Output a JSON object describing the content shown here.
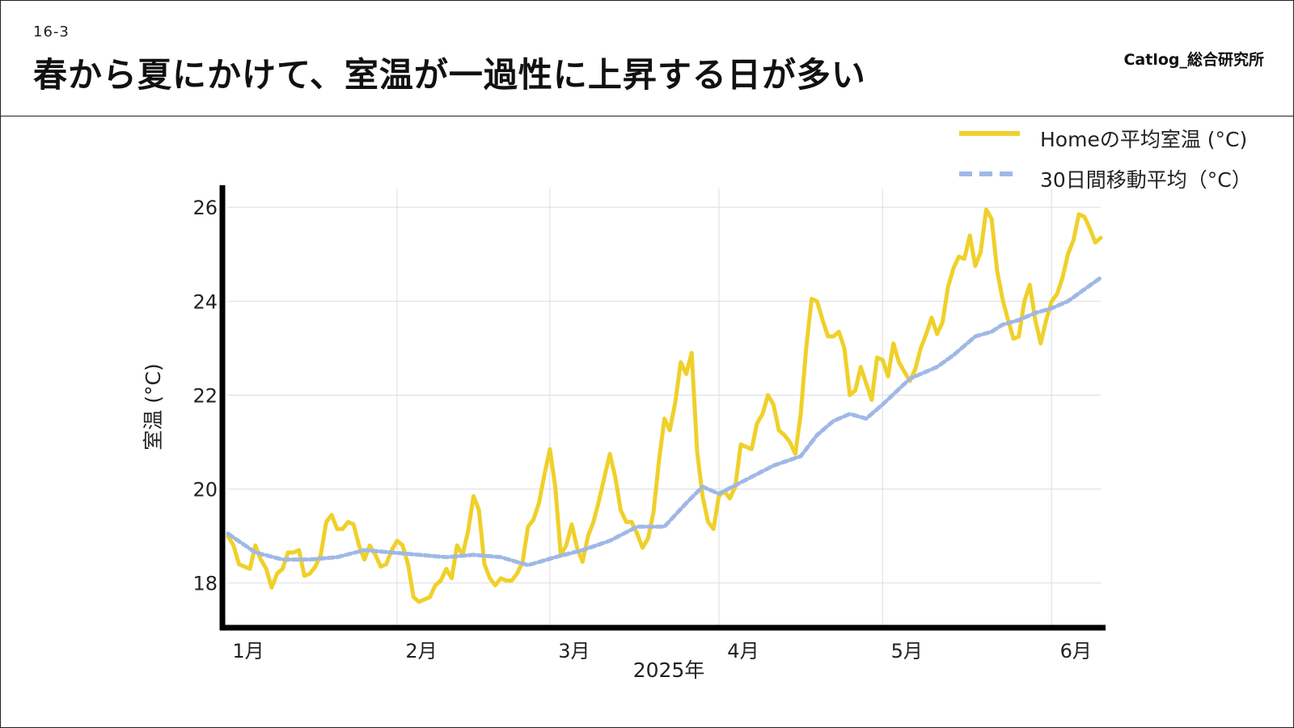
{
  "header": {
    "slide_number": "16-3",
    "title": "春から夏にかけて、室温が一過性に上昇する日が多い",
    "brand": "Catlog_総合研究所"
  },
  "colors": {
    "series_main": "#f0d02a",
    "series_avg": "#9fb8e6",
    "grid": "#dddddd",
    "axis": "#000000"
  },
  "chart_data": {
    "type": "line",
    "xlabel": "2025年",
    "ylabel": "室温 (°C)",
    "ylim": [
      17.1,
      26.4
    ],
    "xlim": [
      0,
      163
    ],
    "yticks": [
      18,
      20,
      22,
      24,
      26
    ],
    "xticks": [
      {
        "day": 0,
        "label": "1月"
      },
      {
        "day": 31,
        "label": "2月"
      },
      {
        "day": 59,
        "label": "3月"
      },
      {
        "day": 90,
        "label": "4月"
      },
      {
        "day": 120,
        "label": "5月"
      },
      {
        "day": 151,
        "label": "6月"
      }
    ],
    "grid": true,
    "legend_position": "top-right",
    "series": [
      {
        "name": "Homeの平均室温 (°C)",
        "style": "solid",
        "points": [
          [
            0,
            19.0
          ],
          [
            1,
            18.8
          ],
          [
            2,
            18.4
          ],
          [
            3,
            18.35
          ],
          [
            4,
            18.3
          ],
          [
            5,
            18.8
          ],
          [
            6,
            18.5
          ],
          [
            7,
            18.3
          ],
          [
            8,
            17.9
          ],
          [
            9,
            18.2
          ],
          [
            10,
            18.3
          ],
          [
            11,
            18.65
          ],
          [
            12,
            18.65
          ],
          [
            13,
            18.7
          ],
          [
            14,
            18.15
          ],
          [
            15,
            18.2
          ],
          [
            16,
            18.35
          ],
          [
            17,
            18.6
          ],
          [
            18,
            19.3
          ],
          [
            19,
            19.45
          ],
          [
            20,
            19.15
          ],
          [
            21,
            19.15
          ],
          [
            22,
            19.3
          ],
          [
            23,
            19.25
          ],
          [
            24,
            18.8
          ],
          [
            25,
            18.5
          ],
          [
            26,
            18.8
          ],
          [
            27,
            18.6
          ],
          [
            28,
            18.35
          ],
          [
            29,
            18.4
          ],
          [
            30,
            18.7
          ],
          [
            31,
            18.9
          ],
          [
            32,
            18.8
          ],
          [
            33,
            18.4
          ],
          [
            34,
            17.7
          ],
          [
            35,
            17.6
          ],
          [
            36,
            17.65
          ],
          [
            37,
            17.7
          ],
          [
            38,
            17.95
          ],
          [
            39,
            18.05
          ],
          [
            40,
            18.3
          ],
          [
            41,
            18.1
          ],
          [
            42,
            18.8
          ],
          [
            43,
            18.6
          ],
          [
            44,
            19.1
          ],
          [
            45,
            19.85
          ],
          [
            46,
            19.55
          ],
          [
            47,
            18.4
          ],
          [
            48,
            18.1
          ],
          [
            49,
            17.95
          ],
          [
            50,
            18.1
          ],
          [
            51,
            18.05
          ],
          [
            52,
            18.05
          ],
          [
            53,
            18.2
          ],
          [
            54,
            18.45
          ],
          [
            55,
            19.2
          ],
          [
            56,
            19.35
          ],
          [
            57,
            19.7
          ],
          [
            58,
            20.3
          ],
          [
            59,
            20.85
          ],
          [
            60,
            20.05
          ],
          [
            61,
            18.6
          ],
          [
            62,
            18.8
          ],
          [
            63,
            19.25
          ],
          [
            64,
            18.75
          ],
          [
            65,
            18.45
          ],
          [
            66,
            19.0
          ],
          [
            67,
            19.3
          ],
          [
            68,
            19.75
          ],
          [
            69,
            20.25
          ],
          [
            70,
            20.75
          ],
          [
            71,
            20.25
          ],
          [
            72,
            19.55
          ],
          [
            73,
            19.3
          ],
          [
            74,
            19.3
          ],
          [
            75,
            19.05
          ],
          [
            76,
            18.75
          ],
          [
            77,
            18.95
          ],
          [
            78,
            19.5
          ],
          [
            79,
            20.6
          ],
          [
            80,
            21.5
          ],
          [
            81,
            21.25
          ],
          [
            82,
            21.85
          ],
          [
            83,
            22.7
          ],
          [
            84,
            22.45
          ],
          [
            85,
            22.9
          ],
          [
            86,
            20.8
          ],
          [
            87,
            19.85
          ],
          [
            88,
            19.3
          ],
          [
            89,
            19.15
          ],
          [
            90,
            19.85
          ],
          [
            91,
            19.95
          ],
          [
            92,
            19.8
          ],
          [
            93,
            20.05
          ],
          [
            94,
            20.95
          ],
          [
            95,
            20.9
          ],
          [
            96,
            20.85
          ],
          [
            97,
            21.4
          ],
          [
            98,
            21.6
          ],
          [
            99,
            22.0
          ],
          [
            100,
            21.8
          ],
          [
            101,
            21.25
          ],
          [
            102,
            21.15
          ],
          [
            103,
            21.0
          ],
          [
            104,
            20.75
          ],
          [
            105,
            21.6
          ],
          [
            106,
            23.0
          ],
          [
            107,
            24.05
          ],
          [
            108,
            24.0
          ],
          [
            109,
            23.6
          ],
          [
            110,
            23.25
          ],
          [
            111,
            23.25
          ],
          [
            112,
            23.35
          ],
          [
            113,
            23.0
          ],
          [
            114,
            22.0
          ],
          [
            115,
            22.1
          ],
          [
            116,
            22.6
          ],
          [
            117,
            22.25
          ],
          [
            118,
            21.9
          ],
          [
            119,
            22.8
          ],
          [
            120,
            22.75
          ],
          [
            121,
            22.4
          ],
          [
            122,
            23.1
          ],
          [
            123,
            22.7
          ],
          [
            124,
            22.5
          ],
          [
            125,
            22.3
          ],
          [
            126,
            22.55
          ],
          [
            127,
            23.0
          ],
          [
            128,
            23.3
          ],
          [
            129,
            23.65
          ],
          [
            130,
            23.3
          ],
          [
            131,
            23.55
          ],
          [
            132,
            24.3
          ],
          [
            133,
            24.7
          ],
          [
            134,
            24.95
          ],
          [
            135,
            24.9
          ],
          [
            136,
            25.4
          ],
          [
            137,
            24.75
          ],
          [
            138,
            25.05
          ],
          [
            139,
            25.95
          ],
          [
            140,
            25.75
          ],
          [
            141,
            24.65
          ],
          [
            142,
            24.05
          ],
          [
            143,
            23.6
          ],
          [
            144,
            23.2
          ],
          [
            145,
            23.25
          ],
          [
            146,
            24.0
          ],
          [
            147,
            24.35
          ],
          [
            148,
            23.6
          ],
          [
            149,
            23.1
          ],
          [
            150,
            23.6
          ],
          [
            151,
            24.0
          ],
          [
            152,
            24.15
          ],
          [
            153,
            24.5
          ],
          [
            154,
            25.0
          ],
          [
            155,
            25.3
          ],
          [
            156,
            25.85
          ],
          [
            157,
            25.8
          ],
          [
            158,
            25.55
          ],
          [
            159,
            25.25
          ],
          [
            160,
            25.35
          ]
        ]
      },
      {
        "name": "30日間移動平均（°C）",
        "style": "dotted",
        "points": [
          [
            0,
            19.05
          ],
          [
            5,
            18.65
          ],
          [
            10,
            18.5
          ],
          [
            15,
            18.5
          ],
          [
            20,
            18.55
          ],
          [
            25,
            18.7
          ],
          [
            30,
            18.65
          ],
          [
            35,
            18.6
          ],
          [
            40,
            18.55
          ],
          [
            45,
            18.6
          ],
          [
            50,
            18.55
          ],
          [
            55,
            18.38
          ],
          [
            60,
            18.55
          ],
          [
            65,
            18.7
          ],
          [
            70,
            18.9
          ],
          [
            75,
            19.2
          ],
          [
            80,
            19.2
          ],
          [
            84,
            19.7
          ],
          [
            87,
            20.05
          ],
          [
            90,
            19.9
          ],
          [
            95,
            20.2
          ],
          [
            100,
            20.5
          ],
          [
            105,
            20.7
          ],
          [
            108,
            21.15
          ],
          [
            111,
            21.45
          ],
          [
            114,
            21.6
          ],
          [
            117,
            21.5
          ],
          [
            120,
            21.8
          ],
          [
            125,
            22.35
          ],
          [
            130,
            22.6
          ],
          [
            133,
            22.85
          ],
          [
            137,
            23.25
          ],
          [
            140,
            23.35
          ],
          [
            142,
            23.5
          ],
          [
            145,
            23.6
          ],
          [
            148,
            23.75
          ],
          [
            151,
            23.85
          ],
          [
            154,
            24.0
          ],
          [
            157,
            24.25
          ],
          [
            160,
            24.5
          ]
        ]
      }
    ]
  }
}
